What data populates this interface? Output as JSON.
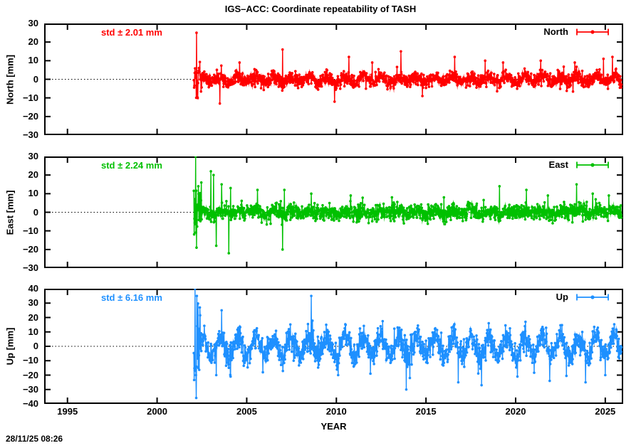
{
  "chart_data": {
    "type": "scatter-line",
    "title": "IGS–ACC: Coordinate repeatability of TASH",
    "xlabel": "YEAR",
    "footer_timestamp": "28/11/25 08:26",
    "xlim": [
      1993.7,
      2026.0
    ],
    "x_ticks": [
      1995,
      2000,
      2005,
      2010,
      2015,
      2020,
      2025
    ],
    "grid": false,
    "zero_line": "dotted",
    "legend_position": "top-right-inside",
    "series_x_start": 2002.05,
    "series_x_end": 2025.9,
    "points_per_year": 60,
    "panels": [
      {
        "id": "north",
        "legend_label": "North",
        "ylabel": "North [mm]",
        "std_label": "std ± 2.01 mm",
        "std_mm": 2.01,
        "color": "#ff0000",
        "ylim": [
          -30,
          30
        ],
        "ytick_step": 10,
        "seed": 101,
        "noise_std": 1.9,
        "seasonal_amp": 1.4,
        "seasonal_phase": 0.25,
        "burst_until": 2002.5,
        "burst_mult": 2.4,
        "spikes": [
          [
            2002.2,
            25
          ],
          [
            2003.5,
            -13
          ],
          [
            2004.6,
            9
          ],
          [
            2007.0,
            16
          ],
          [
            2009.9,
            -12
          ],
          [
            2010.7,
            12
          ],
          [
            2012.0,
            9
          ],
          [
            2013.6,
            15
          ],
          [
            2014.8,
            -9
          ],
          [
            2016.6,
            12
          ],
          [
            2018.3,
            10
          ],
          [
            2019.3,
            9
          ],
          [
            2021.4,
            10
          ],
          [
            2023.3,
            9
          ],
          [
            2024.9,
            11
          ],
          [
            2025.4,
            12
          ]
        ]
      },
      {
        "id": "east",
        "legend_label": "East",
        "ylabel": "East [mm]",
        "std_label": "std ± 2.24 mm",
        "std_mm": 2.24,
        "color": "#00c000",
        "ylim": [
          -30,
          30
        ],
        "ytick_step": 10,
        "seed": 202,
        "noise_std": 2.1,
        "seasonal_amp": 0.9,
        "seasonal_phase": 0.3,
        "burst_until": 2002.5,
        "burst_mult": 3.0,
        "spikes": [
          [
            2002.15,
            30
          ],
          [
            2002.2,
            -19
          ],
          [
            2002.3,
            14
          ],
          [
            2003.0,
            22
          ],
          [
            2003.15,
            20
          ],
          [
            2003.3,
            -18
          ],
          [
            2003.6,
            15
          ],
          [
            2004.0,
            -22
          ],
          [
            2004.1,
            13
          ],
          [
            2005.6,
            12
          ],
          [
            2007.0,
            -20
          ],
          [
            2007.1,
            12
          ],
          [
            2008.6,
            10
          ],
          [
            2010.8,
            9
          ],
          [
            2013.1,
            8
          ],
          [
            2016.0,
            8
          ],
          [
            2019.1,
            14
          ],
          [
            2020.6,
            12
          ],
          [
            2021.8,
            9
          ],
          [
            2023.4,
            15
          ],
          [
            2024.3,
            10
          ],
          [
            2025.2,
            9
          ]
        ]
      },
      {
        "id": "up",
        "legend_label": "Up",
        "ylabel": "Up [mm]",
        "std_label": "std ± 6.16 mm",
        "std_mm": 6.16,
        "color": "#1e90ff",
        "ylim": [
          -40,
          40
        ],
        "ytick_step": 10,
        "seed": 303,
        "noise_std": 4.3,
        "seasonal_amp": 6.5,
        "seasonal_phase": 0.25,
        "burst_until": 2002.5,
        "burst_mult": 2.8,
        "spikes": [
          [
            2002.12,
            40
          ],
          [
            2002.16,
            -20
          ],
          [
            2002.22,
            35
          ],
          [
            2002.3,
            -15
          ],
          [
            2003.3,
            -20
          ],
          [
            2003.6,
            25
          ],
          [
            2004.1,
            -21
          ],
          [
            2005.9,
            -18
          ],
          [
            2008.6,
            35
          ],
          [
            2010.1,
            -20
          ],
          [
            2011.9,
            -19
          ],
          [
            2013.9,
            -30
          ],
          [
            2014.1,
            -22
          ],
          [
            2016.8,
            -25
          ],
          [
            2018.1,
            -27
          ],
          [
            2020.1,
            -21
          ],
          [
            2021.9,
            -24
          ],
          [
            2023.9,
            -25
          ],
          [
            2025.0,
            -20
          ]
        ]
      }
    ]
  }
}
